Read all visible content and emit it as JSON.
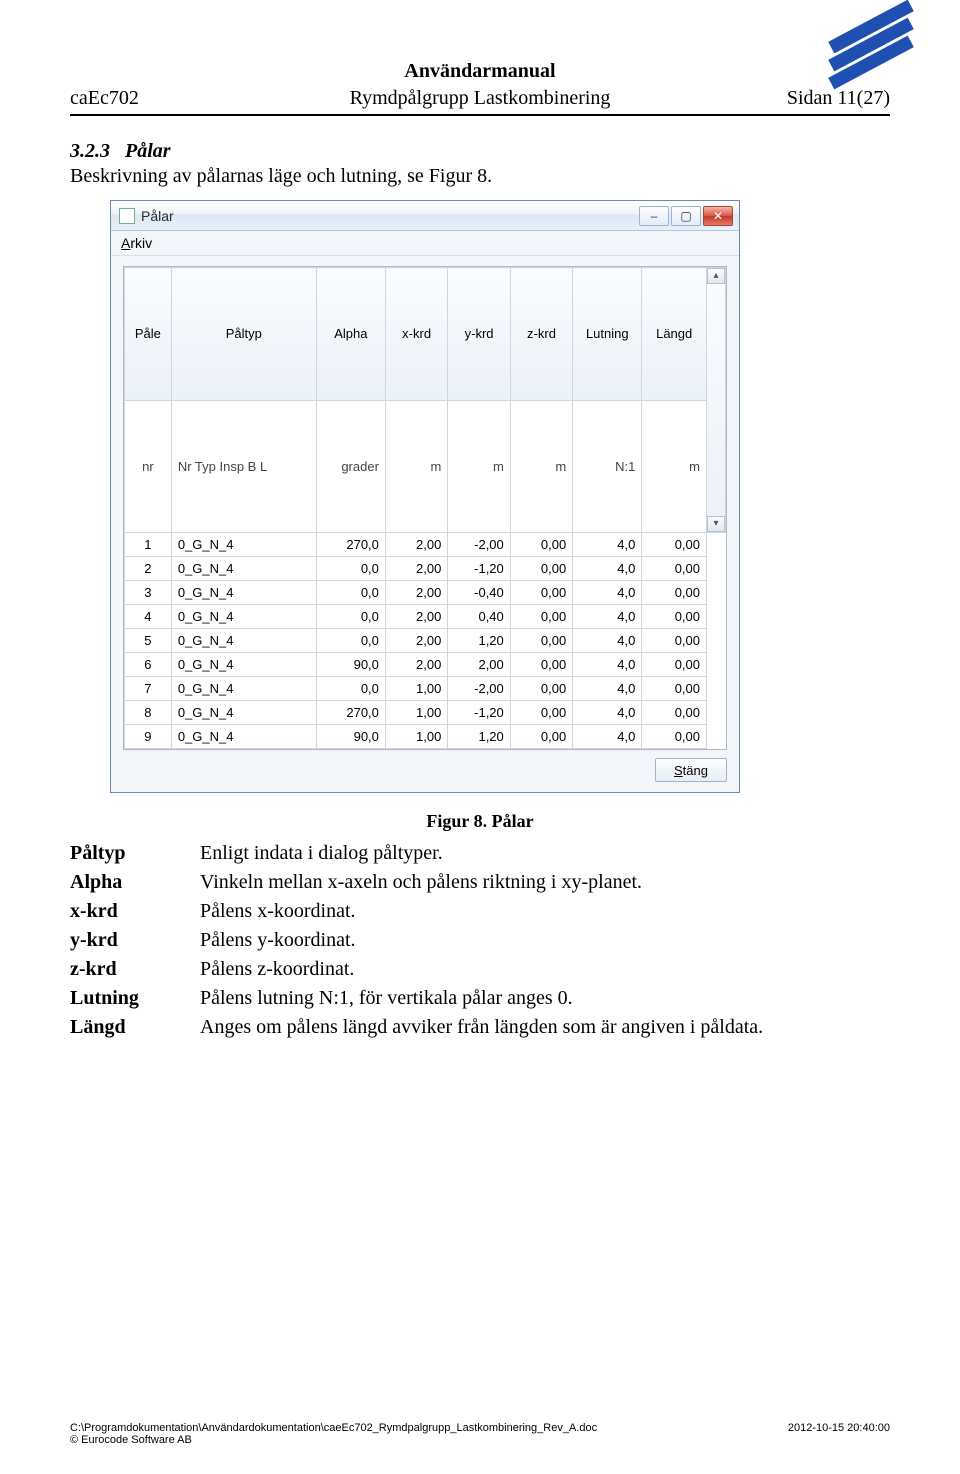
{
  "header": {
    "manual_title": "Användarmanual",
    "doc_id": "caEc702",
    "subtitle": "Rymdpålgrupp Lastkombinering",
    "page_label": "Sidan 11(27)"
  },
  "logo": {
    "stripe_color": "#1f4fb0",
    "stripe_count": 3
  },
  "section": {
    "number": "3.2.3",
    "title": "Pålar",
    "intro": "Beskrivning av pålarnas läge och lutning, se Figur 8."
  },
  "window": {
    "title": "Pålar",
    "menu_arkiv": "Arkiv",
    "menu_arkiv_underline": "A",
    "menu_arkiv_rest": "rkiv",
    "close_button": "Stäng",
    "close_underline": "S",
    "close_rest": "täng",
    "columns": [
      "Påle",
      "Påltyp",
      "Alpha",
      "x-krd",
      "y-krd",
      "z-krd",
      "Lutning",
      "Längd"
    ],
    "units": [
      "nr",
      "Nr Typ Insp B L",
      "grader",
      "m",
      "m",
      "m",
      "N:1",
      "m"
    ],
    "rows": [
      [
        "1",
        "0_G_N_4",
        "270,0",
        "2,00",
        "-2,00",
        "0,00",
        "4,0",
        "0,00"
      ],
      [
        "2",
        "0_G_N_4",
        "0,0",
        "2,00",
        "-1,20",
        "0,00",
        "4,0",
        "0,00"
      ],
      [
        "3",
        "0_G_N_4",
        "0,0",
        "2,00",
        "-0,40",
        "0,00",
        "4,0",
        "0,00"
      ],
      [
        "4",
        "0_G_N_4",
        "0,0",
        "2,00",
        "0,40",
        "0,00",
        "4,0",
        "0,00"
      ],
      [
        "5",
        "0_G_N_4",
        "0,0",
        "2,00",
        "1,20",
        "0,00",
        "4,0",
        "0,00"
      ],
      [
        "6",
        "0_G_N_4",
        "90,0",
        "2,00",
        "2,00",
        "0,00",
        "4,0",
        "0,00"
      ],
      [
        "7",
        "0_G_N_4",
        "0,0",
        "1,00",
        "-2,00",
        "0,00",
        "4,0",
        "0,00"
      ],
      [
        "8",
        "0_G_N_4",
        "270,0",
        "1,00",
        "-1,20",
        "0,00",
        "4,0",
        "0,00"
      ],
      [
        "9",
        "0_G_N_4",
        "90,0",
        "1,00",
        "1,20",
        "0,00",
        "4,0",
        "0,00"
      ]
    ]
  },
  "caption": "Figur 8. Pålar",
  "definitions": [
    {
      "term": "Påltyp",
      "desc": "Enligt indata i dialog påltyper."
    },
    {
      "term": "Alpha",
      "desc": "Vinkeln mellan x-axeln och pålens riktning i xy-planet."
    },
    {
      "term": "x-krd",
      "desc": "Pålens x-koordinat."
    },
    {
      "term": "y-krd",
      "desc": "Pålens y-koordinat."
    },
    {
      "term": "z-krd",
      "desc": "Pålens z-koordinat."
    },
    {
      "term": "Lutning",
      "desc": "Pålens lutning N:1, för vertikala pålar anges 0."
    },
    {
      "term": "Längd",
      "desc": "Anges om pålens längd avviker från längden som är angiven i påldata."
    }
  ],
  "footer": {
    "path": "C:\\Programdokumentation\\Användardokumentation\\caeEc702_Rymdpalgrupp_Lastkombinering_Rev_A.doc",
    "copyright": "© Eurocode Software AB",
    "timestamp": "2012-10-15 20:40:00"
  }
}
